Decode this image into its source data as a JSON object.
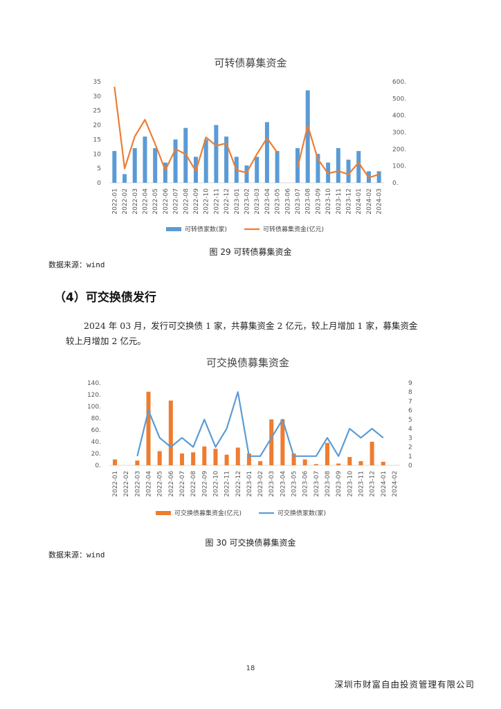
{
  "chart1": {
    "title": "可转债募集资金",
    "caption": "图 29 可转债募集资金",
    "source": "数据来源：wind",
    "chart_data": {
      "type": "bar+line",
      "title": "可转债募集资金",
      "categories": [
        "2022-01",
        "2022-02",
        "2022-03",
        "2022-04",
        "2022-05",
        "2022-06",
        "2022-07",
        "2022-08",
        "2022-09",
        "2022-10",
        "2022-11",
        "2022-12",
        "2023-01",
        "2023-02",
        "2023-03",
        "2023-04",
        "2023-05",
        "2023-06",
        "2023-07",
        "2023-08",
        "2023-09",
        "2023-10",
        "2023-11",
        "2023-12",
        "2024-01",
        "2024-02",
        "2024-03"
      ],
      "series": [
        {
          "name": "可转债家数(家)",
          "type": "bar",
          "axis": "left",
          "color": "#5b9bd5",
          "values": [
            11,
            3,
            12,
            16,
            12,
            7,
            15,
            19,
            9,
            15,
            20,
            16,
            9,
            6,
            9,
            21,
            11,
            0,
            12,
            32,
            10,
            7,
            12,
            8,
            11,
            4,
            4
          ]
        },
        {
          "name": "可转债募集资金(亿元)",
          "type": "line",
          "axis": "right",
          "color": "#ed7d31",
          "values": [
            570,
            85,
            275,
            375,
            230,
            75,
            200,
            170,
            70,
            270,
            220,
            235,
            75,
            60,
            170,
            265,
            180,
            null,
            90,
            340,
            140,
            55,
            70,
            50,
            120,
            30,
            50
          ]
        }
      ],
      "left_axis": {
        "ylim": [
          0,
          35
        ],
        "ticks": [
          "0",
          "5",
          "10",
          "15",
          "20",
          "25",
          "30",
          "35"
        ]
      },
      "right_axis": {
        "ylim": [
          0,
          600
        ],
        "ticks": [
          "0.",
          "100.",
          "200.",
          "300.",
          "400.",
          "500.",
          "600."
        ]
      },
      "legend": "bottom"
    }
  },
  "section": {
    "heading": "（4）可交换债发行",
    "paragraph_line1": "2024 年 03 月，发行可交换债 1 家，共募集资金 2 亿元，较上月增加 1 家，募集资金",
    "paragraph_line2": "较上月增加 2 亿元。"
  },
  "chart2": {
    "title": "可交换债募集资金",
    "caption": "图 30 可交换债募集资金",
    "source": "数据来源：wind",
    "chart_data": {
      "type": "bar+line",
      "title": "可交换债募集资金",
      "categories": [
        "2022-01",
        "2022-02",
        "2022-03",
        "2022-04",
        "2022-05",
        "2022-06",
        "2022-07",
        "2022-08",
        "2022-09",
        "2022-10",
        "2022-11",
        "2022-12",
        "2023-01",
        "2023-02",
        "2023-03",
        "2023-04",
        "2023-05",
        "2023-06",
        "2023-07",
        "2023-08",
        "2023-09",
        "2023-10",
        "2023-11",
        "2023-12",
        "2024-01",
        "2024-02"
      ],
      "series": [
        {
          "name": "可交换债募集资金(亿元)",
          "type": "bar",
          "axis": "left",
          "color": "#ed7d31",
          "values": [
            10,
            0,
            8,
            125,
            24,
            110,
            20,
            22,
            32,
            28,
            18,
            30,
            20,
            7,
            78,
            78,
            20,
            10,
            2,
            38,
            3,
            14,
            7,
            40,
            6,
            0
          ]
        },
        {
          "name": "可交换债家数(家)",
          "type": "line",
          "axis": "right",
          "color": "#5b9bd5",
          "values": [
            null,
            null,
            1,
            6,
            3,
            2,
            3,
            2,
            5,
            2,
            4,
            8,
            1,
            1,
            3,
            5,
            1,
            1,
            1,
            3,
            1,
            4,
            3,
            4,
            3,
            null
          ]
        }
      ],
      "left_axis": {
        "ylim": [
          0,
          140
        ],
        "ticks": [
          "0.",
          "20.",
          "40.",
          "60.",
          "80.",
          "100.",
          "120.",
          "140."
        ]
      },
      "right_axis": {
        "ylim": [
          0,
          9
        ],
        "ticks": [
          "0",
          "1",
          "2",
          "3",
          "4",
          "5",
          "6",
          "7",
          "8",
          "9"
        ]
      },
      "legend": "bottom"
    }
  },
  "footer": {
    "page_number": "18",
    "company": "深圳市财富自由投资管理有限公司"
  }
}
